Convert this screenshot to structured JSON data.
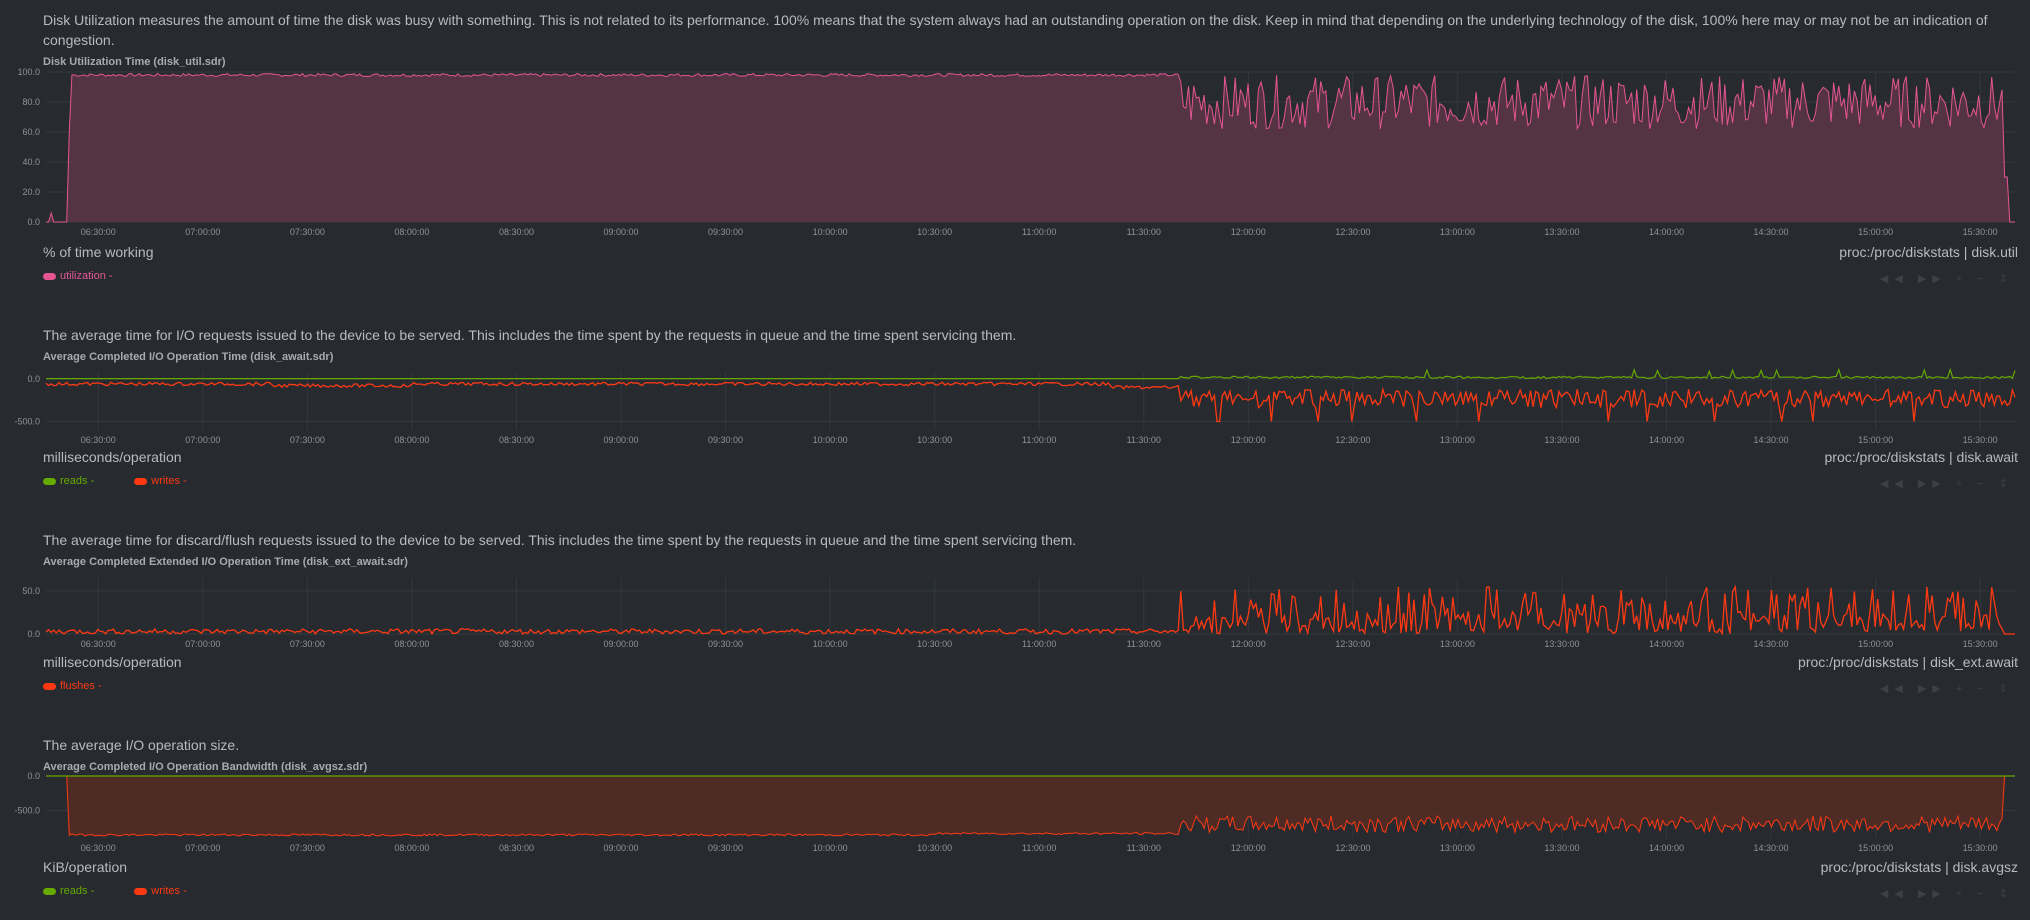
{
  "time_ticks": [
    "06:30:00",
    "07:00:00",
    "07:30:00",
    "08:00:00",
    "08:30:00",
    "09:00:00",
    "09:30:00",
    "10:00:00",
    "10:30:00",
    "11:00:00",
    "11:30:00",
    "12:00:00",
    "12:30:00",
    "13:00:00",
    "13:30:00",
    "14:00:00",
    "14:30:00",
    "15:00:00",
    "15:30:00"
  ],
  "nav_controls": "◀◀ ▶▶ + − ⇕",
  "colors": {
    "background": "#272b30",
    "pink": "#e45592",
    "pink_fill": "#5a3545",
    "green": "#66aa00",
    "orange": "#fe3912",
    "orange_fill": "#4e2c25",
    "grid": "#33383d"
  },
  "sections": [
    {
      "description": "Disk Utilization measures the amount of time the disk was busy with something. This is not related to its performance. 100% means that the system always had an outstanding operation on the disk. Keep in mind that depending on the underlying technology of the disk, 100% here may or may not be an indication of congestion.",
      "title": "Disk Utilization Time (disk_util.sdr)",
      "units": "% of time working",
      "context": "proc:/proc/diskstats | disk.util",
      "y_ticks": [
        "100.0",
        "80.0",
        "60.0",
        "40.0",
        "20.0",
        "0.0"
      ],
      "legend": [
        {
          "label": "utilization",
          "suffix": "-",
          "color": "#e45592"
        }
      ]
    },
    {
      "description": "The average time for I/O requests issued to the device to be served. This includes the time spent by the requests in queue and the time spent servicing them.",
      "title": "Average Completed I/O Operation Time (disk_await.sdr)",
      "units": "milliseconds/operation",
      "context": "proc:/proc/diskstats | disk.await",
      "y_ticks": [
        "0.0",
        "-500.0"
      ],
      "legend": [
        {
          "label": "reads",
          "suffix": "-",
          "color": "#66aa00"
        },
        {
          "label": "writes",
          "suffix": "-",
          "color": "#fe3912"
        }
      ]
    },
    {
      "description": "The average time for discard/flush requests issued to the device to be served. This includes the time spent by the requests in queue and the time spent servicing them.",
      "title": "Average Completed Extended I/O Operation Time (disk_ext_await.sdr)",
      "units": "milliseconds/operation",
      "context": "proc:/proc/diskstats | disk_ext.await",
      "y_ticks": [
        "50.0",
        "0.0"
      ],
      "legend": [
        {
          "label": "flushes",
          "suffix": "-",
          "color": "#fe3912"
        }
      ]
    },
    {
      "description": "The average I/O operation size.",
      "title": "Average Completed I/O Operation Bandwidth (disk_avgsz.sdr)",
      "units": "KiB/operation",
      "context": "proc:/proc/diskstats | disk.avgsz",
      "y_ticks": [
        "0.0",
        "-500.0"
      ],
      "legend": [
        {
          "label": "reads",
          "suffix": "-",
          "color": "#66aa00"
        },
        {
          "label": "writes",
          "suffix": "-",
          "color": "#fe3912"
        }
      ]
    }
  ],
  "chart_data": [
    {
      "type": "area",
      "title": "Disk Utilization Time (disk_util.sdr)",
      "ylabel": "% of time working",
      "ylim": [
        0,
        100
      ],
      "x_range": [
        "06:15:00",
        "15:40:00"
      ],
      "series": [
        {
          "name": "utilization",
          "segments": [
            {
              "from": "06:15:00",
              "to": "06:18:00",
              "approx": 2
            },
            {
              "from": "06:18:00",
              "to": "06:20:00",
              "approx": 0
            },
            {
              "from": "06:21:00",
              "to": "11:40:00",
              "approx": 98
            },
            {
              "from": "11:40:00",
              "to": "15:37:00",
              "approx": 78,
              "fluctuating": [
                58,
                100
              ]
            },
            {
              "from": "15:38:00",
              "to": "15:40:00",
              "approx": 0
            }
          ]
        }
      ]
    },
    {
      "type": "line",
      "title": "Average Completed I/O Operation Time (disk_await.sdr)",
      "ylabel": "milliseconds/operation",
      "ylim": [
        -550,
        30
      ],
      "series": [
        {
          "name": "reads",
          "approx": 5,
          "spikes_after": "11:40:00",
          "spike_max": 120
        },
        {
          "name": "writes",
          "approx": -60,
          "after_11_40": [
            -350,
            -60
          ]
        }
      ]
    },
    {
      "type": "line",
      "title": "Average Completed Extended I/O Operation Time (disk_ext_await.sdr)",
      "ylabel": "milliseconds/operation",
      "ylim": [
        0,
        65
      ],
      "series": [
        {
          "name": "flushes",
          "before_11_40": [
            0,
            8
          ],
          "after_11_40": [
            0,
            60
          ]
        }
      ]
    },
    {
      "type": "area",
      "title": "Average Completed I/O Operation Bandwidth (disk_avgsz.sdr)",
      "ylabel": "KiB/operation",
      "ylim": [
        -900,
        0
      ],
      "series": [
        {
          "name": "reads",
          "approx": 0
        },
        {
          "name": "writes",
          "before_11_40": -880,
          "after_11_40": [
            -800,
            -600
          ]
        }
      ]
    }
  ]
}
